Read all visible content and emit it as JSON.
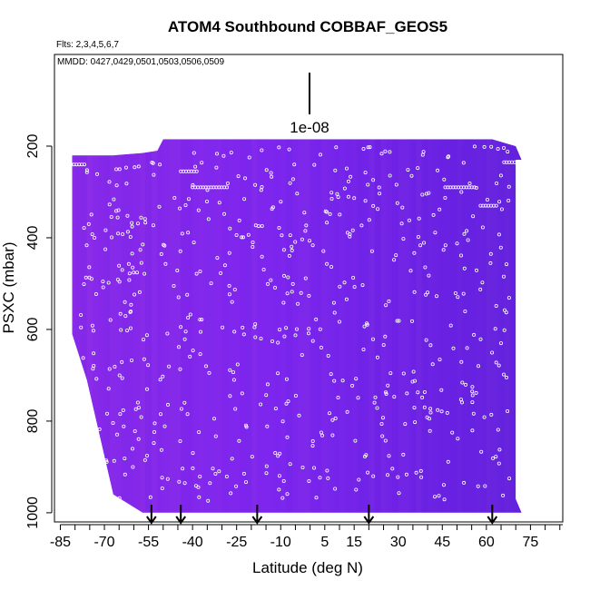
{
  "chart_data": {
    "type": "heatmap",
    "title": "ATOM4 Southbound COBBAF_GEOS5",
    "flights_note": "Flts: 2,3,4,5,6,7",
    "dates_note": "MMDD: 0427,0429,0501,0503,0506,0509",
    "xlabel": "Latitude (deg N)",
    "ylabel": "PSXC (mbar)",
    "xlim": [
      -87,
      86
    ],
    "ylim": [
      1020,
      0
    ],
    "x_ticks": [
      -85,
      -70,
      -55,
      -40,
      -25,
      -10,
      5,
      15,
      30,
      45,
      60,
      75
    ],
    "x_tick_labels": [
      "-85",
      "-70",
      "-55",
      "-40",
      "-25",
      "-10",
      "5",
      "15",
      "30",
      "45",
      "60",
      "75"
    ],
    "y_ticks": [
      200,
      400,
      600,
      800,
      1000
    ],
    "y_tick_labels": [
      "200",
      "400",
      "600",
      "800",
      "1000"
    ],
    "scale_bar_label": "1e-08",
    "profile_latitudes": [
      -54,
      -44,
      -18,
      20,
      62
    ],
    "colors": {
      "purple_light": "#8a2be8",
      "purple_mid": "#7a20ee",
      "purple_dark": "#5a1fd8",
      "marker": "#ffffff",
      "axis": "#000000"
    },
    "domain_envelope": {
      "lat": [
        -81,
        -76,
        -67,
        -57,
        -52,
        -50,
        49,
        62,
        70,
        72,
        70
      ],
      "p_top": [
        220,
        220,
        220,
        215,
        210,
        185,
        185,
        185,
        200,
        230,
        230
      ],
      "p_bottom": [
        610,
        710,
        960,
        1000,
        1000,
        1000,
        1000,
        1000,
        1000,
        1000,
        970
      ]
    },
    "grid": false,
    "legend": "none"
  }
}
